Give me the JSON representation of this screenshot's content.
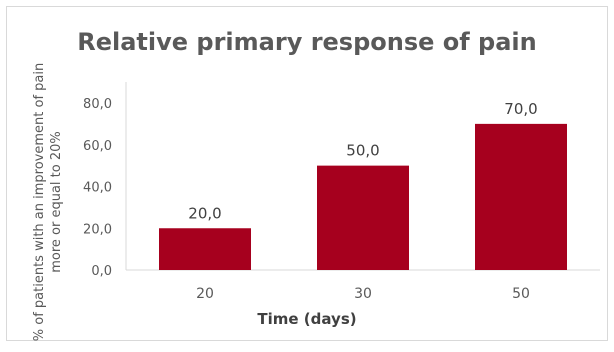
{
  "chart_data": {
    "type": "bar",
    "title": "Relative primary response of pain",
    "xlabel": "Time (days)",
    "ylabel": "% of patients with an improvement of pain more or equal to 20%",
    "categories": [
      "20",
      "30",
      "50"
    ],
    "values": [
      20.0,
      50.0,
      70.0
    ],
    "data_labels": [
      "20,0",
      "50,0",
      "70,0"
    ],
    "ylim": [
      0,
      80
    ],
    "yticks": [
      0,
      20,
      40,
      60,
      80
    ],
    "ytick_labels": [
      "0,0",
      "20,0",
      "40,0",
      "60,0",
      "80,0"
    ],
    "bar_color": "#a6001e",
    "grid": false,
    "legend": "none"
  }
}
